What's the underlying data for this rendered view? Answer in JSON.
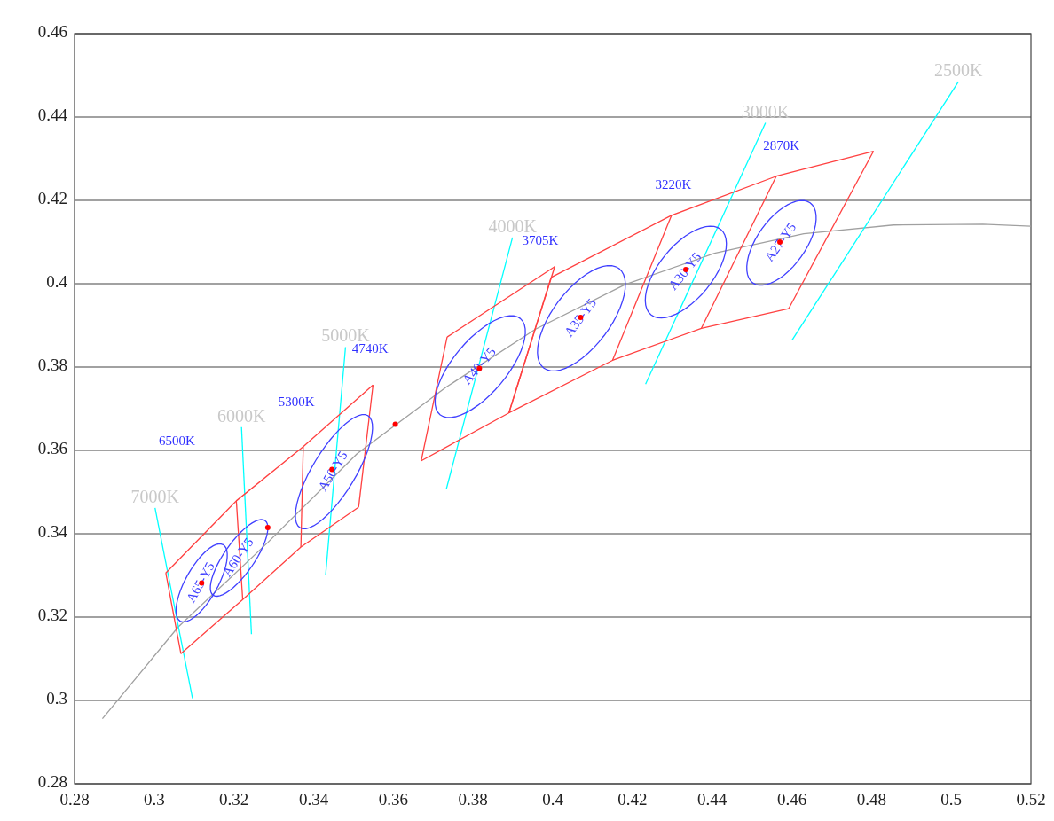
{
  "chart_data": {
    "type": "line",
    "xlim": [
      0.28,
      0.52
    ],
    "ylim": [
      0.28,
      0.46
    ],
    "xticks": [
      0.28,
      0.3,
      0.32,
      0.34,
      0.36,
      0.38,
      0.4,
      0.42,
      0.44,
      0.46,
      0.48,
      0.5,
      0.52
    ],
    "yticks": [
      0.28,
      0.3,
      0.32,
      0.34,
      0.36,
      0.38,
      0.4,
      0.42,
      0.44,
      0.46
    ],
    "grid": "y",
    "series": [
      {
        "color": "#a0a0a0",
        "x": [
          0.287,
          0.306,
          0.3285,
          0.3509,
          0.3733,
          0.3957,
          0.4182,
          0.4406,
          0.463,
          0.4855,
          0.5079,
          0.52
        ],
        "values": [
          0.2956,
          0.3176,
          0.3379,
          0.3592,
          0.3752,
          0.3891,
          0.3998,
          0.4073,
          0.412,
          0.4141,
          0.4143,
          0.4138
        ]
      },
      {
        "name": "7000K",
        "color": "#00ffff",
        "x": [
          0.3002,
          0.3096
        ],
        "values": [
          0.3462,
          0.3005
        ]
      },
      {
        "name": "6000K",
        "color": "#00ffff",
        "x": [
          0.3219,
          0.3244
        ],
        "values": [
          0.3656,
          0.3159
        ]
      },
      {
        "name": "5000K",
        "color": "#00ffff",
        "x": [
          0.348,
          0.343
        ],
        "values": [
          0.3848,
          0.33
        ]
      },
      {
        "name": "4000K",
        "color": "#00ffff",
        "x": [
          0.3899,
          0.3733
        ],
        "values": [
          0.4111,
          0.3507
        ]
      },
      {
        "name": "3000K",
        "color": "#00ffff",
        "x": [
          0.4534,
          0.4233
        ],
        "values": [
          0.4386,
          0.3759
        ]
      },
      {
        "name": "2500K",
        "color": "#00ffff",
        "x": [
          0.5018,
          0.4601
        ],
        "values": [
          0.4485,
          0.3865
        ]
      },
      {
        "color": "#ff4040",
        "x": [
          0.3029,
          0.3206,
          0.3374,
          0.3549
        ],
        "values": [
          0.3306,
          0.3479,
          0.3609,
          0.3757
        ]
      },
      {
        "color": "#ff4040",
        "x": [
          0.3067,
          0.3222,
          0.3368,
          0.3513
        ],
        "values": [
          0.3112,
          0.3242,
          0.3368,
          0.3464
        ]
      },
      {
        "color": "#ff4040",
        "x": [
          0.3029,
          0.3067
        ],
        "values": [
          0.3306,
          0.3112
        ]
      },
      {
        "color": "#ff4040",
        "x": [
          0.3206,
          0.3222
        ],
        "values": [
          0.3479,
          0.3242
        ]
      },
      {
        "color": "#ff4040",
        "x": [
          0.3374,
          0.3368
        ],
        "values": [
          0.3609,
          0.3368
        ]
      },
      {
        "color": "#ff4040",
        "x": [
          0.3549,
          0.3513
        ],
        "values": [
          0.3757,
          0.3464
        ]
      },
      {
        "color": "#ff4040",
        "x": [
          0.3735,
          0.4005
        ],
        "values": [
          0.3872,
          0.4041
        ]
      },
      {
        "color": "#ff4040",
        "x": [
          0.3996,
          0.4298,
          0.4561,
          0.4805
        ],
        "values": [
          0.4015,
          0.4164,
          0.4258,
          0.4318
        ]
      },
      {
        "color": "#ff4040",
        "x": [
          0.367,
          0.389,
          0.415,
          0.4373,
          0.4592
        ],
        "values": [
          0.3575,
          0.369,
          0.3816,
          0.3893,
          0.394
        ]
      },
      {
        "color": "#ff4040",
        "x": [
          0.3735,
          0.367
        ],
        "values": [
          0.3872,
          0.3575
        ]
      },
      {
        "color": "#ff4040",
        "x": [
          0.4005,
          0.389
        ],
        "values": [
          0.4041,
          0.369
        ]
      },
      {
        "color": "#ff4040",
        "x": [
          0.3996,
          0.389
        ],
        "values": [
          0.4015,
          0.369
        ]
      },
      {
        "color": "#ff4040",
        "x": [
          0.4298,
          0.415
        ],
        "values": [
          0.4164,
          0.3816
        ]
      },
      {
        "color": "#ff4040",
        "x": [
          0.4561,
          0.4373
        ],
        "values": [
          0.4258,
          0.3893
        ]
      },
      {
        "color": "#ff4040",
        "x": [
          0.4805,
          0.4592
        ],
        "values": [
          0.4318,
          0.394
        ]
      },
      {
        "type": "scatter",
        "marker": "circle",
        "color": "#ff0000",
        "x": [
          0.3119,
          0.3285,
          0.3446,
          0.3605,
          0.3816,
          0.407,
          0.4334,
          0.457
        ],
        "values": [
          0.3282,
          0.3415,
          0.3554,
          0.3663,
          0.3797,
          0.3919,
          0.4034,
          0.41
        ]
      }
    ],
    "annotations": [
      "6500K",
      "5300K",
      "4740K",
      "3705K",
      "3220K",
      "2870K",
      "A65-Y5",
      "A60-Y5",
      "A50-Y5",
      "A40-Y5",
      "A35-Y5",
      "A30-Y5",
      "A27-Y5"
    ]
  }
}
